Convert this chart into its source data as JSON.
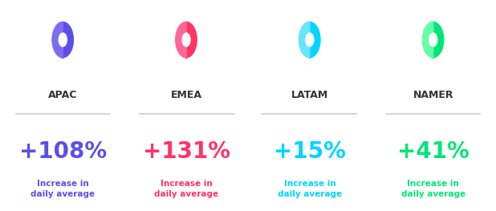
{
  "regions": [
    "APAC",
    "EMEA",
    "LATAM",
    "NAMER"
  ],
  "percentages": [
    "+108%",
    "+131%",
    "+15%",
    "+41%"
  ],
  "subtitle": "Increase in\ndaily average",
  "colors": [
    "#5B4FE8",
    "#FF3366",
    "#00D4FF",
    "#00E676"
  ],
  "pin_colors": [
    {
      "main": "#5B4FE8",
      "secondary": "#7B6FF0",
      "hole": "#FFFFFF"
    },
    {
      "main": "#FF3366",
      "secondary": "#FF6699",
      "hole": "#FFFFFF"
    },
    {
      "main": "#00D4FF",
      "secondary": "#66E5FF",
      "hole": "#FFFFFF"
    },
    {
      "main": "#00E676",
      "secondary": "#66FFAA",
      "hole": "#FFFFFF"
    }
  ],
  "bg_color": "#FFFFFF",
  "label_color": "#333333",
  "separator_color": "#CCCCCC",
  "figsize": [
    6.18,
    2.63
  ],
  "dpi": 100
}
